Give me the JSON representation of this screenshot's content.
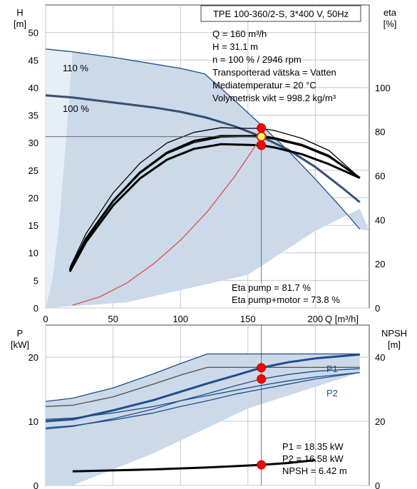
{
  "chart_data": [
    {
      "type": "line",
      "title": "TPE 100-360/2-S, 3*400 V, 50Hz",
      "ylabel": "H",
      "ylabel_unit": "[m]",
      "y2label": "eta",
      "y2label_unit": "[%]",
      "xlabel": "Q [m³/h]",
      "xlim": [
        0,
        240
      ],
      "ylim": [
        0,
        55
      ],
      "y2lim": [
        0,
        137.5
      ],
      "x_ticks": [
        "0",
        "50",
        "100",
        "150",
        "200"
      ],
      "y_ticks": [
        "0",
        "5",
        "10",
        "15",
        "20",
        "25",
        "30",
        "35",
        "40",
        "45",
        "50"
      ],
      "y2_ticks": [
        "0",
        "20",
        "40",
        "60",
        "80",
        "100"
      ],
      "grid": true,
      "info_lines": [
        "Q = 160 m³/h",
        "H = 31.1 m",
        "n = 100 % / 2946 rpm",
        "Transporterad vätska = Vatten",
        "Mediatemperatur = 20 °C",
        "Volymetrisk vikt = 998.2 kg/m³"
      ],
      "annotations": [
        "Eta pump = 81.7 %",
        "Eta pump+motor = 73.8 %"
      ],
      "curve_labels": [
        "110 %",
        "100 %"
      ],
      "duty_point": {
        "q": 160,
        "h": 31.1
      },
      "series": [
        {
          "label_ref": 0,
          "axis": "H",
          "style": "thin",
          "x": [
            0,
            20,
            50,
            80,
            100,
            118,
            140,
            160,
            180,
            200,
            220,
            233
          ],
          "y": [
            47.0,
            46.5,
            45.5,
            44.3,
            43.5,
            42.5,
            37.7,
            33.2,
            28.5,
            23.4,
            18.0,
            14.3
          ]
        },
        {
          "label_ref": 1,
          "axis": "H",
          "style": "thick",
          "x": [
            0,
            20,
            50,
            80,
            100,
            120,
            140,
            160,
            180,
            200,
            220,
            233
          ],
          "y": [
            38.6,
            38.2,
            37.3,
            36.4,
            35.6,
            34.5,
            33.0,
            31.1,
            28.7,
            25.6,
            21.8,
            19.2
          ]
        },
        {
          "name": "",
          "axis": "H",
          "style": "thin",
          "color": "#505050",
          "x": [
            0,
            20,
            50,
            80,
            100,
            118,
            140,
            160,
            180,
            200,
            220,
            233
          ],
          "y": [
            38.6,
            38.2,
            37.3,
            36.4,
            35.6,
            34.5,
            33.0,
            31.1,
            28.7,
            25.6,
            21.8,
            19.2
          ]
        },
        {
          "name": "",
          "axis": "eta",
          "style": "thin",
          "color": "#000000",
          "x": [
            18,
            30,
            50,
            70,
            90,
            110,
            130,
            150,
            160,
            170,
            190,
            210,
            233
          ],
          "y": [
            18.3,
            33.8,
            52.2,
            65.7,
            74.9,
            79.7,
            81.8,
            81.5,
            81.5,
            80.5,
            77.0,
            71.5,
            59.0
          ]
        },
        {
          "name": "",
          "axis": "eta",
          "style": "thin",
          "color": "#000000",
          "x": [
            18,
            30,
            50,
            70,
            90,
            110,
            130,
            150,
            160,
            170,
            190,
            210,
            233
          ],
          "y": [
            16.5,
            31.0,
            48.2,
            61.0,
            70.0,
            75.0,
            77.5,
            77.8,
            77.5,
            76.5,
            73.5,
            68.5,
            59.0
          ]
        },
        {
          "name": "",
          "axis": "eta",
          "style": "thick",
          "color": "#000000",
          "x": [
            18,
            30,
            50,
            70,
            90,
            110,
            130,
            150,
            160,
            170,
            190,
            210,
            233
          ],
          "y": [
            16.5,
            30.0,
            46.5,
            58.8,
            67.3,
            72.2,
            74.3,
            74.0,
            73.8,
            72.8,
            69.8,
            65.3,
            59.0
          ]
        },
        {
          "name": "",
          "axis": "eta",
          "style": "thick",
          "color": "#000000",
          "x": [
            18,
            30,
            50,
            70,
            90,
            110,
            130,
            150,
            160,
            170,
            190,
            210,
            233
          ],
          "y": [
            17.3,
            31.5,
            48.5,
            61.5,
            70.5,
            75.8,
            78.0,
            78.0,
            78.0,
            77.0,
            74.0,
            69.0,
            59.0
          ]
        },
        {
          "name": "",
          "axis": "H",
          "style": "thin",
          "color": "#e05050",
          "x": [
            20,
            40,
            60,
            80,
            100,
            120,
            140,
            150,
            160
          ],
          "y": [
            0.5,
            2.0,
            4.5,
            8.0,
            12.3,
            17.5,
            23.8,
            27.4,
            31.1
          ]
        }
      ],
      "markers": [
        {
          "q": 160,
          "axis": "eta",
          "value": 81.7,
          "color": "#ff0000"
        },
        {
          "q": 160,
          "axis": "eta",
          "value": 73.8,
          "color": "#ff0000"
        }
      ]
    },
    {
      "type": "line",
      "ylabel": "P",
      "ylabel_unit": "[kW]",
      "y2label": "NPSH",
      "y2label_unit": "[m]",
      "xlim": [
        0,
        240
      ],
      "ylim": [
        0,
        25
      ],
      "y2lim": [
        0,
        50
      ],
      "y_ticks": [
        "0",
        "10",
        "20"
      ],
      "y2_ticks": [
        "0",
        "20",
        "40"
      ],
      "grid": true,
      "series_labels": [
        "P1",
        "P2"
      ],
      "annotations": [
        "P1 = 18.35 kW",
        "P2 = 16.58 kW",
        "NPSH = 6.42 m"
      ],
      "series": [
        {
          "name": "",
          "axis": "P",
          "style": "thin",
          "color": "#1f4e8c",
          "x": [
            0,
            20,
            50,
            80,
            100,
            120,
            150,
            200,
            233
          ],
          "y": [
            13.1,
            13.6,
            15.2,
            17.4,
            19.0,
            20.5,
            20.5,
            20.5,
            20.5
          ]
        },
        {
          "name": "",
          "axis": "P",
          "style": "thin",
          "color": "#1f4e8c",
          "x": [
            0,
            20,
            50,
            80,
            100,
            120,
            140,
            160,
            180,
            200,
            233
          ],
          "y": [
            10.3,
            10.5,
            11.3,
            12.3,
            13.2,
            14.0,
            14.8,
            15.6,
            16.3,
            16.9,
            17.6
          ]
        },
        {
          "name": "",
          "axis": "P",
          "style": "thin",
          "color": "#505050",
          "x": [
            0,
            20,
            50,
            80,
            100,
            120,
            150,
            200,
            233
          ],
          "y": [
            12.3,
            12.5,
            13.8,
            15.8,
            17.2,
            18.4,
            18.4,
            18.4,
            18.4
          ]
        },
        {
          "name": "",
          "axis": "P",
          "style": "thin",
          "color": "#1f4e8c",
          "x": [
            0,
            20,
            50,
            80,
            100,
            120,
            140,
            160,
            180,
            200,
            233
          ],
          "y": [
            9.0,
            9.3,
            10.2,
            11.3,
            12.3,
            13.2,
            14.2,
            15.0,
            15.8,
            16.6,
            17.6
          ]
        },
        {
          "label_ref": 0,
          "axis": "P",
          "style": "thick",
          "color": "#1f4e8c",
          "x": [
            0,
            20,
            50,
            80,
            100,
            120,
            140,
            160,
            180,
            200,
            233
          ],
          "y": [
            10.0,
            10.3,
            11.7,
            13.3,
            14.6,
            15.9,
            17.1,
            18.35,
            19.2,
            19.8,
            20.4
          ]
        },
        {
          "label_ref": 1,
          "axis": "P",
          "style": "thin",
          "color": "#1f4e8c",
          "x": [
            0,
            20,
            50,
            80,
            100,
            120,
            140,
            160,
            180,
            200,
            233
          ],
          "y": [
            8.8,
            9.2,
            10.4,
            11.9,
            13.2,
            14.3,
            15.5,
            16.58,
            17.3,
            17.8,
            18.2
          ]
        },
        {
          "name": "",
          "axis": "NPSH",
          "style": "thick",
          "color": "#000000",
          "x": [
            20,
            50,
            80,
            100,
            120,
            140,
            160,
            180,
            200
          ],
          "y": [
            4.4,
            4.7,
            5.0,
            5.3,
            5.6,
            6.0,
            6.42,
            7.0,
            7.9
          ]
        }
      ],
      "markers": [
        {
          "q": 160,
          "axis": "P",
          "value": 18.35,
          "color": "#ff0000"
        },
        {
          "q": 160,
          "axis": "P",
          "value": 16.58,
          "color": "#ff0000"
        },
        {
          "q": 160,
          "axis": "NPSH",
          "value": 6.42,
          "color": "#ff0000"
        }
      ]
    }
  ]
}
